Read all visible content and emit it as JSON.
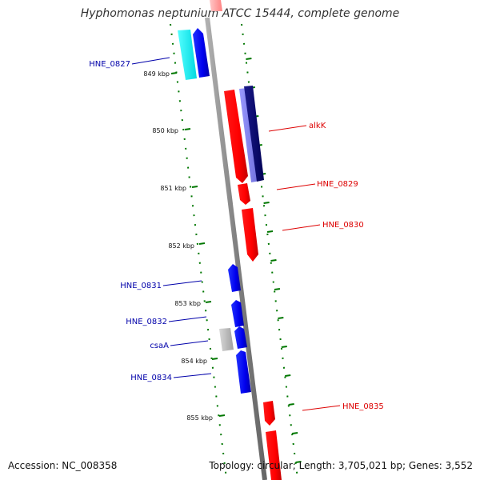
{
  "title": "Hyphomonas neptunium ATCC 15444, complete genome",
  "footer": {
    "accession": "Accession: NC_008358",
    "topology": "Topology: circular; Length: 3,705,021 bp; Genes: 3,552"
  },
  "colors": {
    "forward_strand": "#ff0000",
    "reverse_strand": "#0000ff",
    "backbone": "#8c8c8c",
    "guide": "#007700",
    "label_forward": "#dd0000",
    "label_reverse": "#0000aa"
  },
  "map": {
    "tick_labels": [
      "849 kbp",
      "850 kbp",
      "851 kbp",
      "852 kbp",
      "853 kbp",
      "854 kbp",
      "855 kbp"
    ],
    "genes": [
      {
        "name": "HNE_0827",
        "strand": "reverse",
        "labeled": true
      },
      {
        "name": "",
        "strand": "reverse",
        "labeled": false
      },
      {
        "name": "alkK",
        "strand": "forward",
        "labeled": true
      },
      {
        "name": "",
        "strand": "reverse",
        "labeled": false
      },
      {
        "name": "HNE_0829",
        "strand": "forward",
        "labeled": true
      },
      {
        "name": "HNE_0830",
        "strand": "forward",
        "labeled": true
      },
      {
        "name": "HNE_0831",
        "strand": "reverse",
        "labeled": true
      },
      {
        "name": "HNE_0832",
        "strand": "reverse",
        "labeled": true
      },
      {
        "name": "csaA",
        "strand": "reverse",
        "labeled": true
      },
      {
        "name": "HNE_0834",
        "strand": "reverse",
        "labeled": true
      },
      {
        "name": "HNE_0835",
        "strand": "forward",
        "labeled": true
      }
    ]
  }
}
